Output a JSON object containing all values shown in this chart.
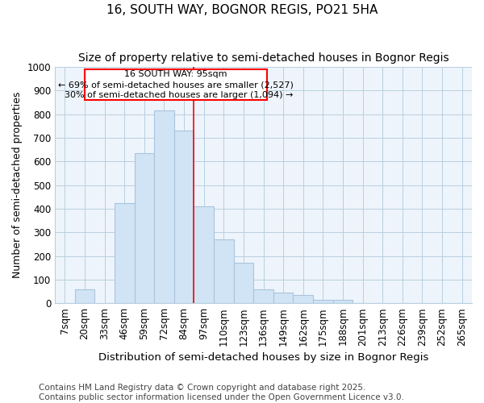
{
  "title": "16, SOUTH WAY, BOGNOR REGIS, PO21 5HA",
  "subtitle": "Size of property relative to semi-detached houses in Bognor Regis",
  "xlabel": "Distribution of semi-detached houses by size in Bognor Regis",
  "ylabel": "Number of semi-detached properties",
  "categories": [
    "7sqm",
    "20sqm",
    "33sqm",
    "46sqm",
    "59sqm",
    "72sqm",
    "84sqm",
    "97sqm",
    "110sqm",
    "123sqm",
    "136sqm",
    "149sqm",
    "162sqm",
    "175sqm",
    "188sqm",
    "201sqm",
    "213sqm",
    "226sqm",
    "239sqm",
    "252sqm",
    "265sqm"
  ],
  "values": [
    0,
    60,
    0,
    425,
    635,
    815,
    730,
    410,
    270,
    170,
    60,
    45,
    35,
    15,
    15,
    0,
    0,
    0,
    0,
    0,
    0
  ],
  "bar_color": "#d0e4f5",
  "bar_edge_color": "#aac4dd",
  "ylim": [
    0,
    1000
  ],
  "yticks": [
    0,
    100,
    200,
    300,
    400,
    500,
    600,
    700,
    800,
    900,
    1000
  ],
  "property_label": "16 SOUTH WAY: 95sqm",
  "pct_smaller": 69,
  "n_smaller": 2527,
  "pct_larger": 30,
  "n_larger": 1094,
  "vline_x_index": 7,
  "footer": "Contains HM Land Registry data © Crown copyright and database right 2025.\nContains public sector information licensed under the Open Government Licence v3.0.",
  "background_color": "#ffffff",
  "plot_bg_color": "#eef4fb",
  "grid_color": "#b8cfe0",
  "title_fontsize": 11,
  "subtitle_fontsize": 10,
  "xlabel_fontsize": 9.5,
  "ylabel_fontsize": 9,
  "tick_fontsize": 8.5,
  "footer_fontsize": 7.5
}
